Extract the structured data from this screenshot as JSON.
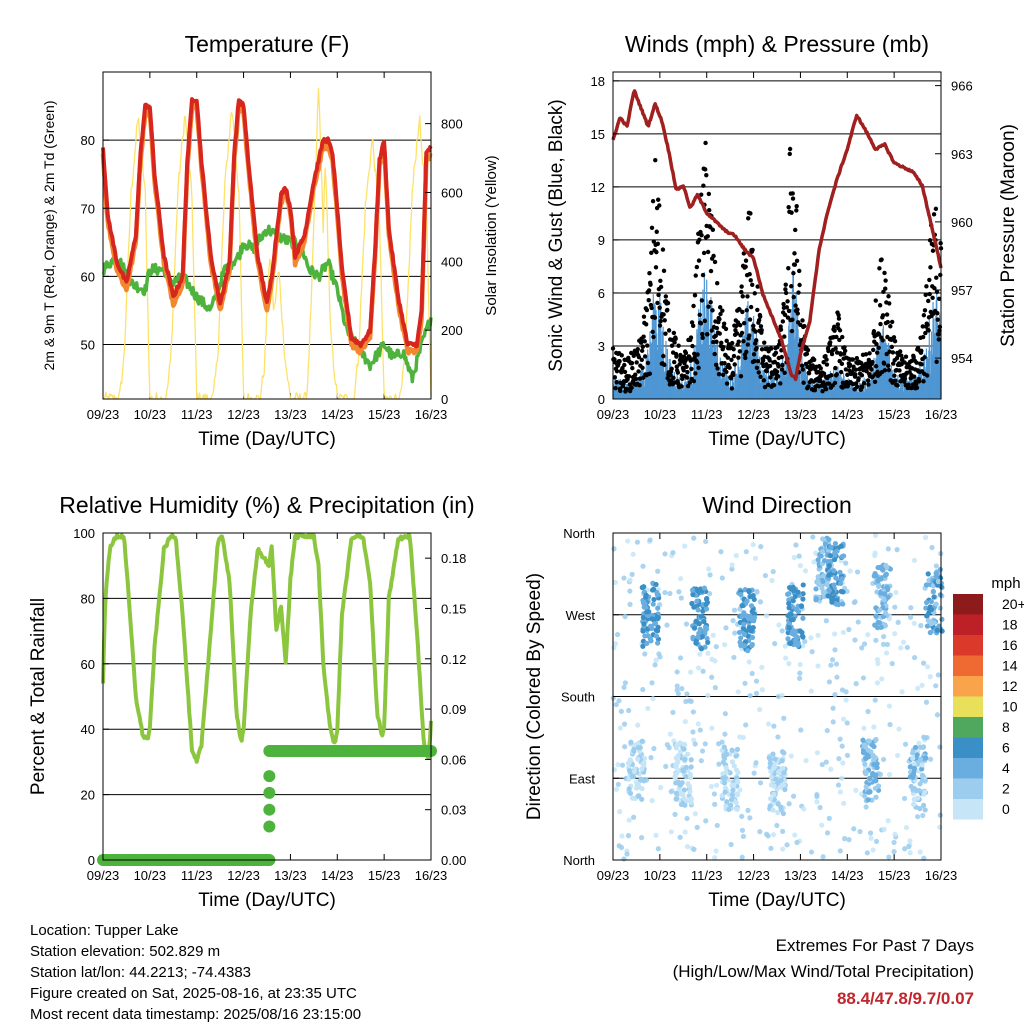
{
  "x_ticks": [
    "09/23",
    "10/23",
    "11/23",
    "12/23",
    "13/23",
    "14/23",
    "15/23",
    "16/23"
  ],
  "x_label": "Time (Day/UTC)",
  "footer": {
    "location": "Location: Tupper Lake",
    "elevation": "Station elevation: 502.829 m",
    "latlon": "Station lat/lon: 44.2213; -74.4383",
    "created": "Figure created on Sat, 2025-08-16, at 23:35 UTC",
    "recent": "Most recent data timestamp: 2025/08/16 23:15:00"
  },
  "extremes": {
    "title": "Extremes For Past 7 Days",
    "subtitle": "(High/Low/Max Wind/Total Precipitation)",
    "values": "88.4/47.8/9.7/0.07"
  },
  "colors": {
    "temp_2m": "#d7261e",
    "temp_9m": "#f2872f",
    "dewpoint": "#4db33d",
    "insolation": "#fde26a",
    "wind": "#4f97d3",
    "gust": "#000000",
    "pressure": "#a01f1f",
    "rh": "#8cc63f",
    "precip": "#4db33d"
  },
  "chart_data": [
    {
      "type": "line",
      "title": "Temperature (F)",
      "xlabel": "Time (Day/UTC)",
      "ylabel": "2m & 9m T (Red, Orange) & 2m Td (Green)",
      "ylabel_right": "Solar Insolation (Yellow)",
      "xlim": [
        0,
        7
      ],
      "ylim": [
        42,
        90
      ],
      "ylim_right": [
        0,
        950
      ],
      "yticks": [
        50,
        60,
        70,
        80
      ],
      "yticks_right": [
        0,
        200,
        400,
        600,
        800
      ],
      "series": [
        {
          "name": "2m T",
          "axis": "left",
          "x": [
            0,
            0.1,
            0.3,
            0.5,
            0.7,
            0.8,
            0.9,
            1.0,
            1.1,
            1.3,
            1.5,
            1.7,
            1.8,
            1.9,
            2.0,
            2.1,
            2.3,
            2.5,
            2.7,
            2.8,
            2.9,
            3.0,
            3.1,
            3.3,
            3.5,
            3.6,
            3.7,
            3.8,
            3.9,
            4.0,
            4.1,
            4.3,
            4.5,
            4.7,
            4.8,
            4.9,
            5.0,
            5.1,
            5.3,
            5.5,
            5.7,
            5.8,
            5.9,
            6.0,
            6.1,
            6.3,
            6.5,
            6.7,
            6.8,
            6.9,
            7.0
          ],
          "y": [
            79,
            69,
            62,
            59,
            66,
            78,
            85,
            85,
            75,
            63,
            57,
            60,
            77,
            86,
            86,
            77,
            63,
            56,
            62,
            78,
            86,
            85,
            77,
            63,
            56,
            60,
            66,
            72,
            73,
            70,
            63,
            66,
            74,
            80,
            80,
            78,
            70,
            61,
            51,
            50,
            52,
            63,
            77,
            80,
            67,
            57,
            50,
            50,
            55,
            78,
            79
          ]
        },
        {
          "name": "9m T",
          "axis": "left",
          "x": [
            0,
            0.1,
            0.3,
            0.5,
            0.7,
            0.8,
            0.9,
            1.0,
            1.1,
            1.3,
            1.5,
            1.7,
            1.8,
            1.9,
            2.0,
            2.1,
            2.3,
            2.5,
            2.7,
            2.8,
            2.9,
            3.0,
            3.1,
            3.3,
            3.5,
            3.6,
            3.7,
            3.8,
            3.9,
            4.0,
            4.1,
            4.3,
            4.5,
            4.7,
            4.8,
            4.9,
            5.0,
            5.1,
            5.3,
            5.5,
            5.7,
            5.8,
            5.9,
            6.0,
            6.1,
            6.3,
            6.5,
            6.7,
            6.8,
            6.9,
            7.0
          ],
          "y": [
            78,
            68,
            61,
            58,
            65,
            77,
            84,
            84,
            74,
            62,
            56,
            59,
            76,
            85,
            85,
            76,
            62,
            55,
            61,
            77,
            85,
            84,
            76,
            62,
            55,
            59,
            65,
            71,
            72,
            69,
            62,
            65,
            73,
            79,
            79,
            77,
            69,
            60,
            50,
            49,
            51,
            62,
            76,
            79,
            66,
            56,
            49,
            49,
            54,
            77,
            78
          ]
        },
        {
          "name": "2m Td",
          "axis": "left",
          "x": [
            0,
            0.3,
            0.6,
            0.9,
            1.0,
            1.3,
            1.5,
            1.7,
            2.0,
            2.3,
            2.6,
            2.9,
            3.0,
            3.2,
            3.5,
            3.7,
            4.0,
            4.2,
            4.4,
            4.6,
            4.8,
            5.0,
            5.2,
            5.5,
            5.7,
            6.0,
            6.2,
            6.4,
            6.6,
            6.8,
            7.0
          ],
          "y": [
            61,
            63,
            59,
            58,
            61,
            61,
            59,
            60,
            57,
            55,
            61,
            63,
            65,
            64,
            67,
            66,
            65,
            65,
            61,
            60,
            62,
            58,
            52,
            49,
            47,
            50,
            48,
            49,
            45,
            50,
            54
          ]
        },
        {
          "name": "Solar Insolation",
          "axis": "right",
          "x": [
            0,
            0.35,
            0.45,
            0.6,
            0.75,
            0.9,
            1.0,
            1.35,
            1.45,
            1.6,
            1.75,
            1.9,
            2.0,
            2.35,
            2.45,
            2.6,
            2.75,
            2.9,
            3.0,
            3.35,
            3.45,
            3.55,
            3.65,
            3.75,
            3.85,
            3.9,
            4.0,
            4.35,
            4.45,
            4.55,
            4.6,
            4.7,
            4.75,
            4.85,
            5.0,
            5.35,
            5.45,
            5.6,
            5.75,
            5.9,
            6.0,
            6.35,
            6.45,
            6.6,
            6.75,
            6.9,
            7.0
          ],
          "y": [
            0,
            0,
            120,
            600,
            820,
            600,
            0,
            0,
            120,
            610,
            830,
            580,
            0,
            0,
            130,
            620,
            850,
            600,
            0,
            0,
            100,
            420,
            250,
            380,
            180,
            100,
            0,
            0,
            300,
            700,
            910,
            500,
            700,
            200,
            0,
            0,
            120,
            560,
            760,
            520,
            0,
            0,
            130,
            600,
            820,
            560,
            0
          ]
        }
      ]
    },
    {
      "type": "line",
      "title": "Winds (mph) & Pressure (mb)",
      "xlabel": "Time (Day/UTC)",
      "ylabel": "Sonic Wind & Gust (Blue, Black)",
      "ylabel_right": "Station Pressure (Maroon)",
      "xlim": [
        0,
        7
      ],
      "ylim": [
        0,
        18.5
      ],
      "ylim_right": [
        952.2,
        966.6
      ],
      "yticks": [
        0,
        3,
        6,
        9,
        12,
        15,
        18
      ],
      "yticks_right": [
        954,
        957,
        960,
        963,
        966
      ],
      "series": [
        {
          "name": "Sonic Wind",
          "axis": "left",
          "x": [
            0,
            0.3,
            0.6,
            0.8,
            0.9,
            1.0,
            1.2,
            1.5,
            1.7,
            1.9,
            2.0,
            2.2,
            2.5,
            2.7,
            2.9,
            3.0,
            3.2,
            3.5,
            3.7,
            3.8,
            3.9,
            4.0,
            4.2,
            4.5,
            4.7,
            4.8,
            4.9,
            5.0,
            5.2,
            5.5,
            5.7,
            5.8,
            5.9,
            6.0,
            6.2,
            6.5,
            6.7,
            6.8,
            6.9,
            7.0
          ],
          "y": [
            1.2,
            0.8,
            1.5,
            3.5,
            6.0,
            5.0,
            2.0,
            0.8,
            2.0,
            5.5,
            6.5,
            3.0,
            1.0,
            2.5,
            5.0,
            4.0,
            1.5,
            1.2,
            3.0,
            7.0,
            5.5,
            2.5,
            1.0,
            1.0,
            1.5,
            2.0,
            1.5,
            1.0,
            0.8,
            1.2,
            3.5,
            4.0,
            3.0,
            1.5,
            1.0,
            1.2,
            3.0,
            4.5,
            5.5,
            4.0
          ]
        },
        {
          "name": "Gust",
          "axis": "left",
          "x": [
            0,
            0.3,
            0.6,
            0.8,
            0.9,
            1.0,
            1.2,
            1.5,
            1.7,
            1.9,
            2.0,
            2.2,
            2.5,
            2.7,
            2.9,
            3.0,
            3.2,
            3.5,
            3.7,
            3.8,
            3.9,
            4.0,
            4.2,
            4.5,
            4.7,
            4.8,
            4.9,
            5.0,
            5.2,
            5.5,
            5.7,
            5.8,
            5.9,
            6.0,
            6.2,
            6.5,
            6.7,
            6.8,
            6.9,
            7.0
          ],
          "y": [
            2.5,
            2.0,
            3.0,
            7.0,
            12.5,
            10.0,
            4.0,
            2.0,
            4.0,
            11.0,
            13.5,
            6.0,
            2.5,
            5.0,
            10.0,
            8.0,
            3.0,
            2.5,
            6.0,
            15.0,
            11.0,
            5.0,
            2.0,
            2.0,
            3.5,
            4.5,
            3.0,
            2.0,
            2.0,
            2.5,
            7.0,
            8.0,
            6.0,
            3.0,
            2.0,
            2.5,
            6.0,
            9.0,
            10.0,
            8.0
          ]
        },
        {
          "name": "Station Pressure",
          "axis": "right",
          "x": [
            0,
            0.15,
            0.3,
            0.45,
            0.6,
            0.75,
            0.9,
            1.05,
            1.2,
            1.35,
            1.5,
            1.65,
            1.8,
            2.0,
            2.2,
            2.4,
            2.6,
            2.8,
            3.0,
            3.2,
            3.4,
            3.6,
            3.8,
            3.9,
            4.0,
            4.2,
            4.4,
            4.6,
            4.8,
            5.0,
            5.2,
            5.4,
            5.6,
            5.8,
            6.0,
            6.2,
            6.4,
            6.6,
            6.8,
            7.0
          ],
          "y": [
            963.6,
            964.6,
            964.2,
            965.8,
            965.0,
            964.2,
            965.2,
            964.4,
            963.0,
            961.4,
            961.6,
            960.6,
            961.2,
            960.4,
            960.0,
            959.6,
            959.4,
            958.8,
            958.4,
            956.8,
            955.8,
            954.8,
            953.3,
            953.1,
            954.2,
            955.6,
            958.8,
            960.6,
            962.0,
            963.2,
            964.7,
            964.0,
            963.2,
            963.4,
            962.6,
            962.4,
            962.2,
            961.6,
            959.8,
            958.0
          ]
        }
      ]
    },
    {
      "type": "line",
      "title": "Relative Humidity (%) & Precipitation (in)",
      "xlabel": "Time (Day/UTC)",
      "ylabel": "Percent & Total Rainfall",
      "xlim": [
        0,
        7
      ],
      "ylim": [
        0,
        100
      ],
      "ylim_right": [
        0,
        0.195
      ],
      "yticks": [
        0,
        20,
        40,
        60,
        80,
        100
      ],
      "yticks_right": [
        "0.00",
        "0.03",
        "0.06",
        "0.09",
        "0.12",
        "0.15",
        "0.18"
      ],
      "yticks_right_values": [
        0,
        0.03,
        0.06,
        0.09,
        0.12,
        0.15,
        0.18
      ],
      "series": [
        {
          "name": "RH",
          "axis": "left",
          "x": [
            0,
            0.05,
            0.15,
            0.3,
            0.45,
            0.55,
            0.7,
            0.85,
            0.95,
            1.0,
            1.1,
            1.3,
            1.45,
            1.55,
            1.7,
            1.9,
            2.0,
            2.1,
            2.3,
            2.45,
            2.55,
            2.7,
            2.85,
            2.95,
            3.0,
            3.15,
            3.3,
            3.45,
            3.55,
            3.6,
            3.7,
            3.8,
            3.9,
            4.0,
            4.1,
            4.2,
            4.3,
            4.5,
            4.6,
            4.7,
            4.85,
            4.95,
            5.0,
            5.1,
            5.3,
            5.45,
            5.55,
            5.7,
            5.85,
            5.95,
            6.0,
            6.1,
            6.3,
            6.45,
            6.55,
            6.7,
            6.85,
            6.95,
            7.0
          ],
          "y": [
            54,
            80,
            96,
            99,
            99,
            80,
            50,
            38,
            37,
            40,
            65,
            95,
            99,
            99,
            75,
            33,
            30,
            35,
            70,
            97,
            99,
            85,
            45,
            36,
            40,
            75,
            95,
            92,
            90,
            96,
            70,
            78,
            60,
            86,
            99,
            99,
            99,
            99,
            90,
            60,
            40,
            35,
            40,
            75,
            98,
            99,
            99,
            85,
            45,
            38,
            40,
            80,
            98,
            99,
            99,
            70,
            35,
            31,
            42
          ]
        },
        {
          "name": "Total Precipitation",
          "axis": "right",
          "x": [
            0,
            0.5,
            1.0,
            1.5,
            2.0,
            2.5,
            3.0,
            3.5,
            3.55,
            3.55,
            3.55,
            3.55,
            3.55,
            3.55,
            4.0,
            4.5,
            5.0,
            5.5,
            6.0,
            6.5,
            7.0
          ],
          "y": [
            0,
            0,
            0,
            0,
            0,
            0,
            0,
            0,
            0,
            0.02,
            0.03,
            0.04,
            0.05,
            0.065,
            0.065,
            0.065,
            0.065,
            0.065,
            0.065,
            0.065,
            0.065
          ]
        }
      ]
    },
    {
      "type": "scatter",
      "title": "Wind Direction",
      "xlabel": "Time (Day/UTC)",
      "ylabel": "Direction (Colored By Speed)",
      "xlim": [
        0,
        7
      ],
      "ytick_labels": [
        "North",
        "East",
        "South",
        "West",
        "North"
      ],
      "ytick_degrees": [
        0,
        90,
        180,
        270,
        360
      ],
      "legend": {
        "title": "mph",
        "labels": [
          "20+",
          "18",
          "16",
          "14",
          "12",
          "10",
          "8",
          "6",
          "4",
          "2",
          "0"
        ],
        "colors": [
          "#8e1b1b",
          "#bd2026",
          "#db3a2a",
          "#ef6a33",
          "#f9a44a",
          "#e8e05a",
          "#4fa85e",
          "#3a8fc7",
          "#6aaee0",
          "#9ccdef",
          "#c6e6f8"
        ]
      },
      "clusters": [
        {
          "x": 0.5,
          "dir": 100,
          "speed": 1
        },
        {
          "x": 0.8,
          "dir": 270,
          "speed": 5
        },
        {
          "x": 1.5,
          "dir": 95,
          "speed": 1
        },
        {
          "x": 1.85,
          "dir": 265,
          "speed": 5
        },
        {
          "x": 2.5,
          "dir": 90,
          "speed": 1
        },
        {
          "x": 2.85,
          "dir": 265,
          "speed": 5
        },
        {
          "x": 3.5,
          "dir": 85,
          "speed": 1
        },
        {
          "x": 3.9,
          "dir": 270,
          "speed": 5
        },
        {
          "x": 4.5,
          "dir": 320,
          "speed": 3
        },
        {
          "x": 4.75,
          "dir": 315,
          "speed": 5
        },
        {
          "x": 5.5,
          "dir": 100,
          "speed": 3
        },
        {
          "x": 5.75,
          "dir": 290,
          "speed": 3
        },
        {
          "x": 6.5,
          "dir": 90,
          "speed": 2
        },
        {
          "x": 6.85,
          "dir": 285,
          "speed": 4
        }
      ]
    }
  ]
}
